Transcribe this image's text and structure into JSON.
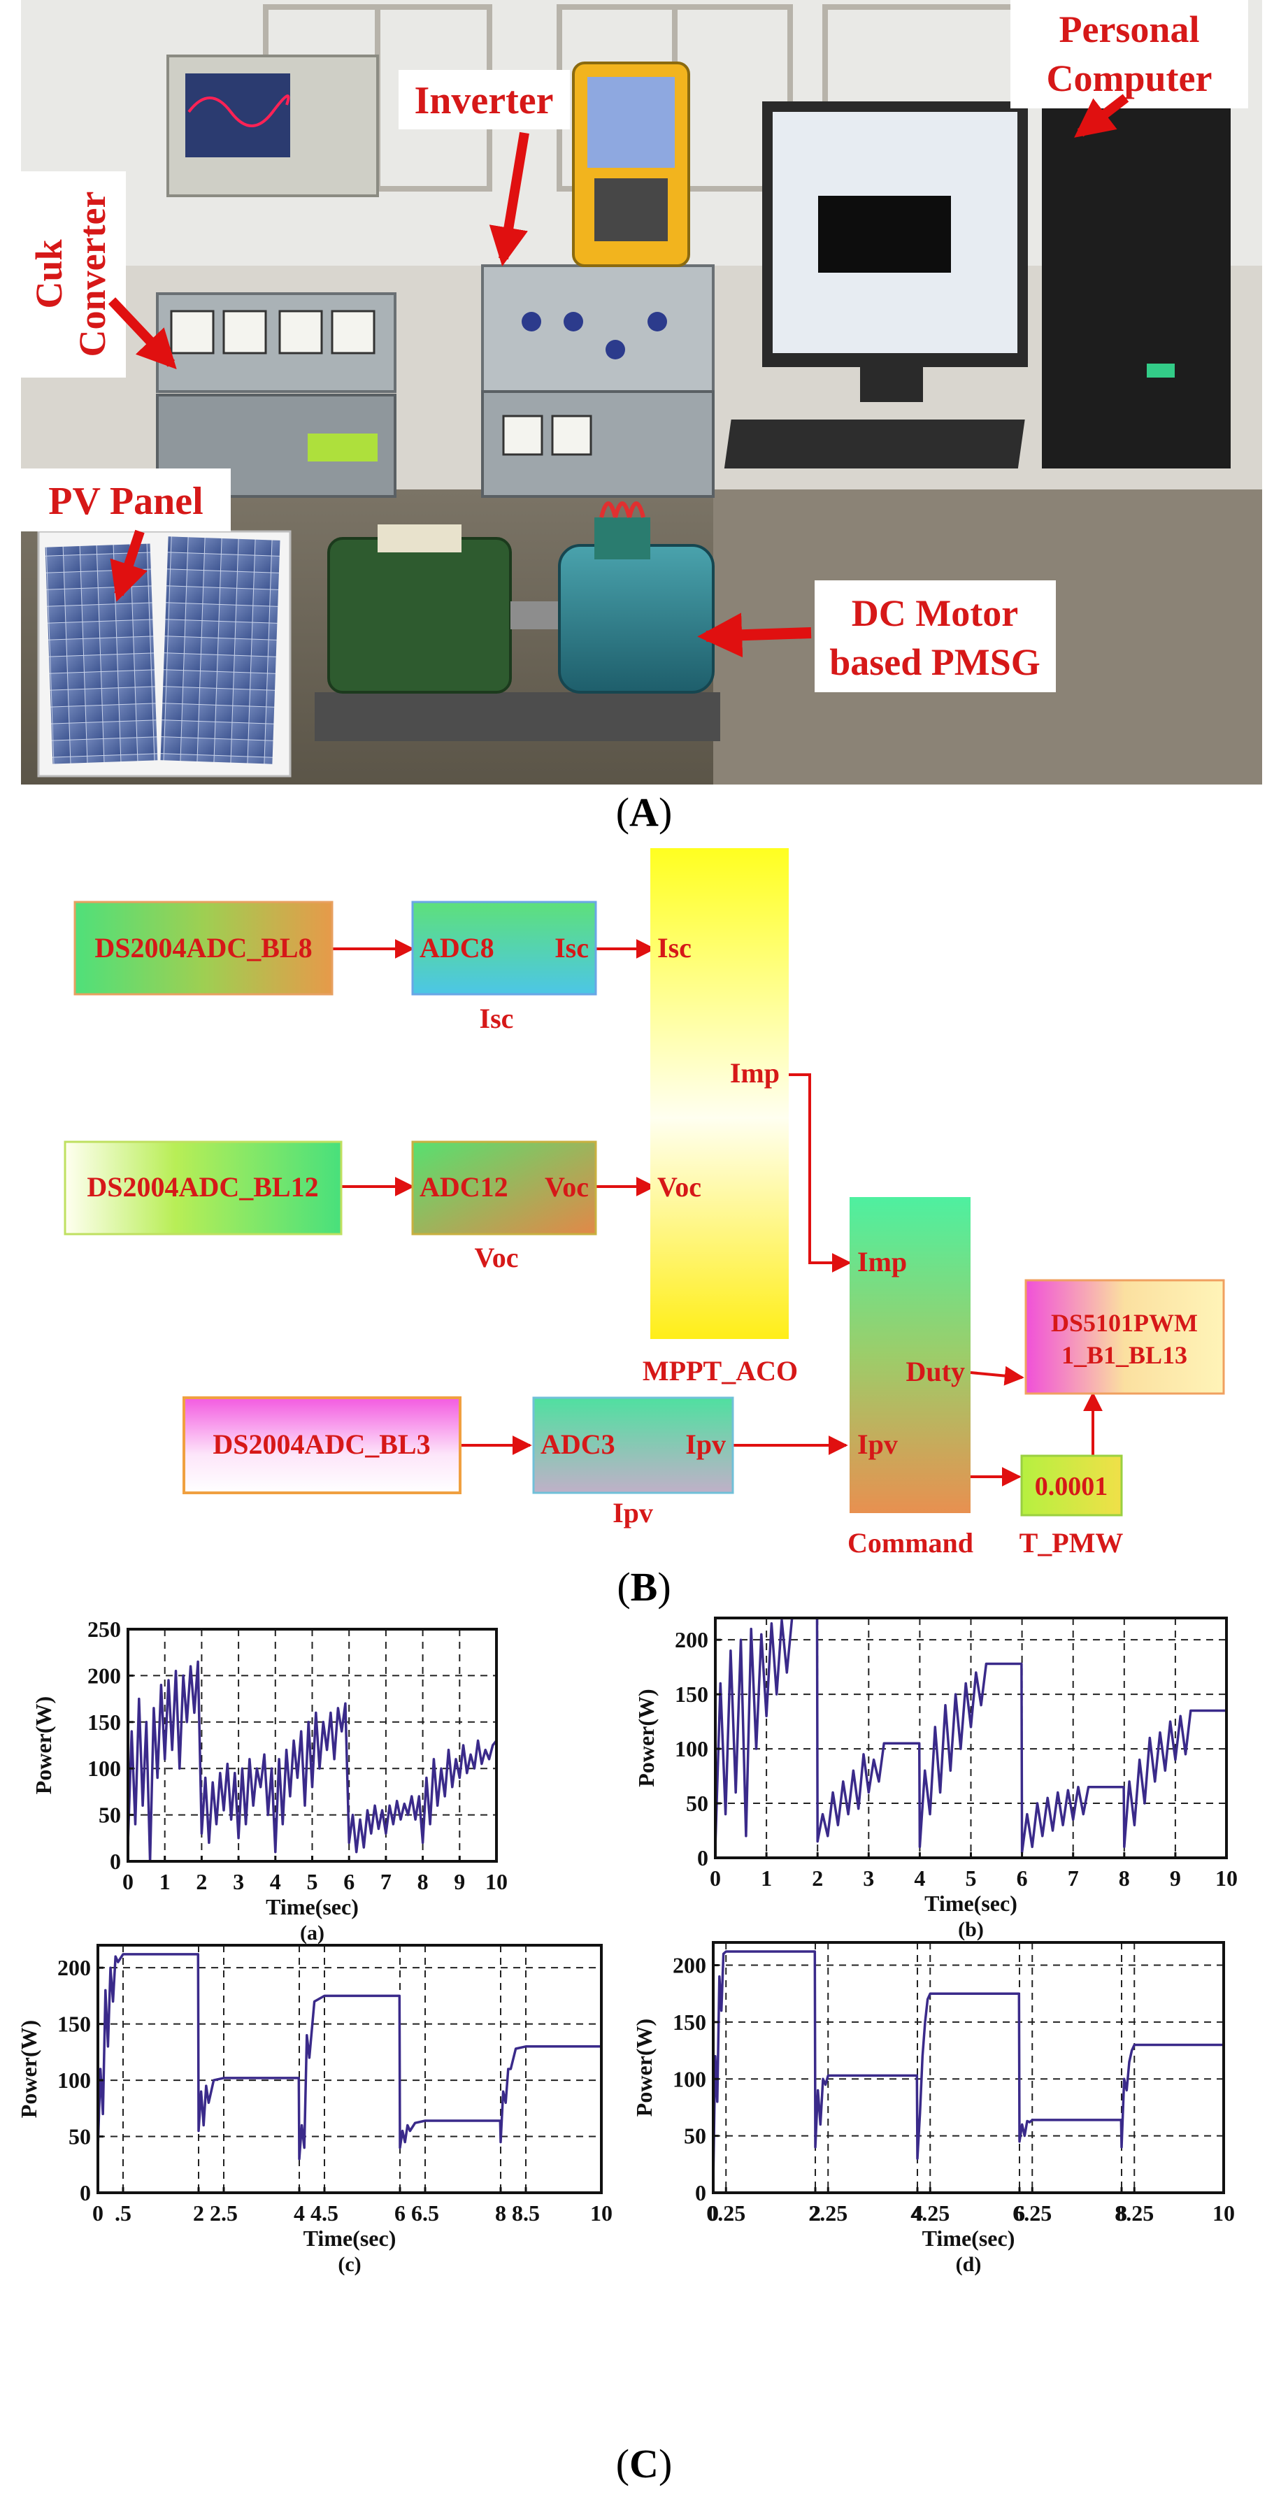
{
  "captions": {
    "a": "A",
    "b": "B",
    "c": "C"
  },
  "photo": {
    "labels": {
      "personal_computer": [
        "Personal",
        "Computer"
      ],
      "inverter": "Inverter",
      "cuk_converter": [
        "Cuk",
        "Converter"
      ],
      "pv_panel": "PV Panel",
      "dc_motor": [
        "DC Motor",
        "based PMSG"
      ]
    }
  },
  "diagram": {
    "blocks": {
      "adc_bl8": "DS2004ADC_BL8",
      "adc_bl12": "DS2004ADC_BL12",
      "adc_bl3": "DS2004ADC_BL3",
      "adc8": "ADC8",
      "adc8_out": "Isc",
      "adc8_name": "Isc",
      "adc12": "ADC12",
      "adc12_out": "Voc",
      "adc12_name": "Voc",
      "adc3": "ADC3",
      "adc3_out": "Ipv",
      "adc3_name": "Ipv",
      "mppt_in_isc": "Isc",
      "mppt_in_voc": "Voc",
      "mppt_out_imp": "Imp",
      "mppt_name": "MPPT_ACO",
      "cmd_in_imp": "Imp",
      "cmd_in_ipv": "Ipv",
      "cmd_out_duty": "Duty",
      "cmd_name": "Command",
      "pwm": [
        "DS5101PWM",
        "1_B1_BL13"
      ],
      "const_value": "0.0001",
      "const_name": "T_PMW"
    },
    "colors": {
      "arrow": "#e01010",
      "text": "#d61818"
    }
  },
  "chart_data": [
    {
      "type": "line",
      "panel": "(a)",
      "xlabel": "Time(sec)",
      "ylabel": "Power(W)",
      "xlim": [
        0,
        10
      ],
      "ylim": [
        0,
        250
      ],
      "xticks": [
        "0",
        "1",
        "2",
        "3",
        "4",
        "5",
        "6",
        "7",
        "8",
        "9",
        "10"
      ],
      "xtick_values": [
        0,
        1,
        2,
        3,
        4,
        5,
        6,
        7,
        8,
        9,
        10
      ],
      "yticks": [
        "0",
        "50",
        "100",
        "150",
        "200",
        "250"
      ],
      "ytick_values": [
        0,
        50,
        100,
        150,
        200,
        250
      ],
      "series": [
        {
          "color": "#3a2a8a",
          "x": [
            0,
            0.1,
            0.2,
            0.3,
            0.4,
            0.5,
            0.6,
            0.7,
            0.8,
            0.9,
            1.0,
            1.1,
            1.2,
            1.3,
            1.4,
            1.5,
            1.6,
            1.7,
            1.8,
            1.9,
            2.0,
            2.1,
            2.2,
            2.3,
            2.4,
            2.5,
            2.6,
            2.7,
            2.8,
            2.9,
            3.0,
            3.1,
            3.2,
            3.3,
            3.4,
            3.5,
            3.6,
            3.7,
            3.8,
            3.9,
            4.0,
            4.1,
            4.2,
            4.3,
            4.4,
            4.5,
            4.6,
            4.7,
            4.8,
            4.9,
            5.0,
            5.1,
            5.2,
            5.3,
            5.4,
            5.5,
            5.6,
            5.7,
            5.8,
            5.9,
            6.0,
            6.1,
            6.2,
            6.3,
            6.4,
            6.5,
            6.6,
            6.7,
            6.8,
            6.9,
            7.0,
            7.1,
            7.2,
            7.3,
            7.4,
            7.5,
            7.6,
            7.7,
            7.8,
            7.9,
            8.0,
            8.1,
            8.2,
            8.3,
            8.4,
            8.5,
            8.6,
            8.7,
            8.8,
            8.9,
            9.0,
            9.1,
            9.2,
            9.3,
            9.4,
            9.5,
            9.6,
            9.7,
            9.8,
            9.9,
            10.0
          ],
          "y": [
            20,
            140,
            40,
            175,
            60,
            150,
            0,
            165,
            90,
            190,
            110,
            195,
            120,
            205,
            100,
            200,
            150,
            210,
            160,
            215,
            30,
            90,
            20,
            85,
            40,
            95,
            55,
            105,
            45,
            95,
            25,
            100,
            40,
            110,
            60,
            100,
            80,
            115,
            50,
            100,
            10,
            110,
            40,
            120,
            70,
            130,
            90,
            140,
            60,
            150,
            80,
            160,
            100,
            150,
            120,
            160,
            110,
            165,
            140,
            170,
            20,
            50,
            10,
            45,
            15,
            55,
            30,
            60,
            35,
            55,
            30,
            60,
            40,
            65,
            45,
            62,
            50,
            70,
            45,
            70,
            20,
            90,
            40,
            110,
            60,
            100,
            70,
            120,
            80,
            110,
            90,
            125,
            95,
            115,
            100,
            130,
            105,
            120,
            110,
            125,
            130
          ]
        }
      ]
    },
    {
      "type": "line",
      "panel": "(b)",
      "xlabel": "Time(sec)",
      "ylabel": "Power(W)",
      "xlim": [
        0,
        10
      ],
      "ylim": [
        0,
        220
      ],
      "xticks": [
        "0",
        "1",
        "2",
        "3",
        "4",
        "5",
        "6",
        "7",
        "8",
        "9",
        "10"
      ],
      "xtick_values": [
        0,
        1,
        2,
        3,
        4,
        5,
        6,
        7,
        8,
        9,
        10
      ],
      "yticks": [
        "0",
        "50",
        "100",
        "150",
        "200"
      ],
      "ytick_values": [
        0,
        50,
        100,
        150,
        200
      ],
      "series": [
        {
          "color": "#3a2a8a",
          "x": [
            0,
            0.1,
            0.2,
            0.3,
            0.4,
            0.5,
            0.6,
            0.7,
            0.8,
            0.9,
            1.0,
            1.1,
            1.2,
            1.3,
            1.4,
            1.5,
            1.6,
            1.8,
            1.99,
            2.0,
            2.1,
            2.2,
            2.3,
            2.4,
            2.5,
            2.6,
            2.7,
            2.8,
            2.9,
            3.0,
            3.1,
            3.2,
            3.3,
            3.5,
            3.99,
            4.0,
            4.1,
            4.2,
            4.3,
            4.4,
            4.5,
            4.6,
            4.7,
            4.8,
            4.9,
            5.0,
            5.1,
            5.2,
            5.3,
            5.5,
            5.99,
            6.0,
            6.1,
            6.2,
            6.3,
            6.4,
            6.5,
            6.6,
            6.7,
            6.8,
            6.9,
            7.0,
            7.1,
            7.2,
            7.3,
            7.5,
            7.99,
            8.0,
            8.1,
            8.2,
            8.3,
            8.4,
            8.5,
            8.6,
            8.7,
            8.8,
            8.9,
            9.0,
            9.1,
            9.2,
            9.3,
            9.5,
            10.0
          ],
          "y": [
            10,
            160,
            40,
            190,
            60,
            200,
            20,
            210,
            100,
            205,
            130,
            215,
            150,
            218,
            170,
            220,
            220,
            220,
            220,
            15,
            40,
            20,
            60,
            30,
            70,
            40,
            80,
            45,
            95,
            60,
            90,
            70,
            105,
            105,
            105,
            10,
            80,
            40,
            120,
            60,
            140,
            80,
            150,
            100,
            160,
            120,
            170,
            140,
            178,
            178,
            178,
            5,
            40,
            10,
            50,
            20,
            55,
            25,
            60,
            30,
            62,
            35,
            65,
            40,
            65,
            65,
            65,
            10,
            70,
            30,
            90,
            50,
            110,
            70,
            115,
            80,
            125,
            90,
            130,
            95,
            135,
            135,
            135
          ]
        }
      ]
    },
    {
      "type": "line",
      "panel": "(c)",
      "xlabel": "Time(sec)",
      "ylabel": "Power(W)",
      "xlim": [
        0,
        10
      ],
      "ylim": [
        0,
        220
      ],
      "xticks": [
        "0",
        ".5",
        "2",
        "2.5",
        "4",
        "4.5",
        "6",
        "6.5",
        "8",
        "8.5",
        "10"
      ],
      "xtick_values": [
        0,
        0.5,
        2,
        2.5,
        4,
        4.5,
        6,
        6.5,
        8,
        8.5,
        10
      ],
      "yticks": [
        "0",
        "50",
        "100",
        "150",
        "200"
      ],
      "ytick_values": [
        0,
        50,
        100,
        150,
        200
      ],
      "series": [
        {
          "color": "#3a2a8a",
          "x": [
            0,
            0.05,
            0.1,
            0.15,
            0.2,
            0.25,
            0.3,
            0.35,
            0.4,
            0.5,
            1.0,
            1.99,
            2.0,
            2.05,
            2.1,
            2.15,
            2.2,
            2.3,
            2.5,
            3.0,
            3.99,
            4.0,
            4.05,
            4.1,
            4.15,
            4.2,
            4.3,
            4.5,
            5.0,
            5.99,
            6.0,
            6.05,
            6.1,
            6.15,
            6.2,
            6.3,
            6.5,
            7.0,
            7.99,
            8.0,
            8.05,
            8.1,
            8.15,
            8.2,
            8.3,
            8.5,
            9.0,
            10.0
          ],
          "y": [
            40,
            110,
            70,
            180,
            130,
            200,
            170,
            210,
            205,
            212,
            212,
            212,
            55,
            90,
            60,
            95,
            80,
            100,
            102,
            102,
            102,
            30,
            60,
            40,
            140,
            120,
            170,
            175,
            175,
            175,
            40,
            55,
            45,
            60,
            55,
            62,
            64,
            64,
            64,
            45,
            90,
            80,
            110,
            110,
            128,
            130,
            130,
            130
          ]
        }
      ]
    },
    {
      "type": "line",
      "panel": "(d)",
      "xlabel": "Time(sec)",
      "ylabel": "Power(W)",
      "xlim": [
        0,
        10
      ],
      "ylim": [
        0,
        220
      ],
      "xticks": [
        "0",
        "0.25",
        "2",
        "2.25",
        "4",
        "4.25",
        "6",
        "6.25",
        "8",
        "8.25",
        "10"
      ],
      "xtick_values": [
        0,
        0.25,
        2,
        2.25,
        4,
        4.25,
        6,
        6.25,
        8,
        8.25,
        10
      ],
      "yticks": [
        "0",
        "50",
        "100",
        "150",
        "200"
      ],
      "ytick_values": [
        0,
        50,
        100,
        150,
        200
      ],
      "series": [
        {
          "color": "#3a2a8a",
          "x": [
            0,
            0.04,
            0.08,
            0.12,
            0.16,
            0.2,
            0.25,
            0.5,
            1.0,
            1.99,
            2.0,
            2.05,
            2.1,
            2.15,
            2.2,
            2.25,
            2.5,
            3.0,
            3.99,
            4.0,
            4.05,
            4.1,
            4.15,
            4.2,
            4.25,
            4.5,
            5.0,
            5.99,
            6.0,
            6.05,
            6.1,
            6.15,
            6.2,
            6.25,
            6.5,
            7.0,
            7.99,
            8.0,
            8.05,
            8.1,
            8.15,
            8.2,
            8.25,
            8.5,
            9.0,
            10.0
          ],
          "y": [
            10,
            120,
            80,
            190,
            160,
            210,
            212,
            212,
            212,
            212,
            40,
            90,
            60,
            100,
            95,
            103,
            103,
            103,
            103,
            30,
            70,
            120,
            150,
            170,
            175,
            175,
            175,
            175,
            45,
            60,
            50,
            63,
            62,
            64,
            64,
            64,
            64,
            40,
            100,
            90,
            115,
            125,
            130,
            130,
            130,
            130
          ]
        }
      ]
    }
  ]
}
